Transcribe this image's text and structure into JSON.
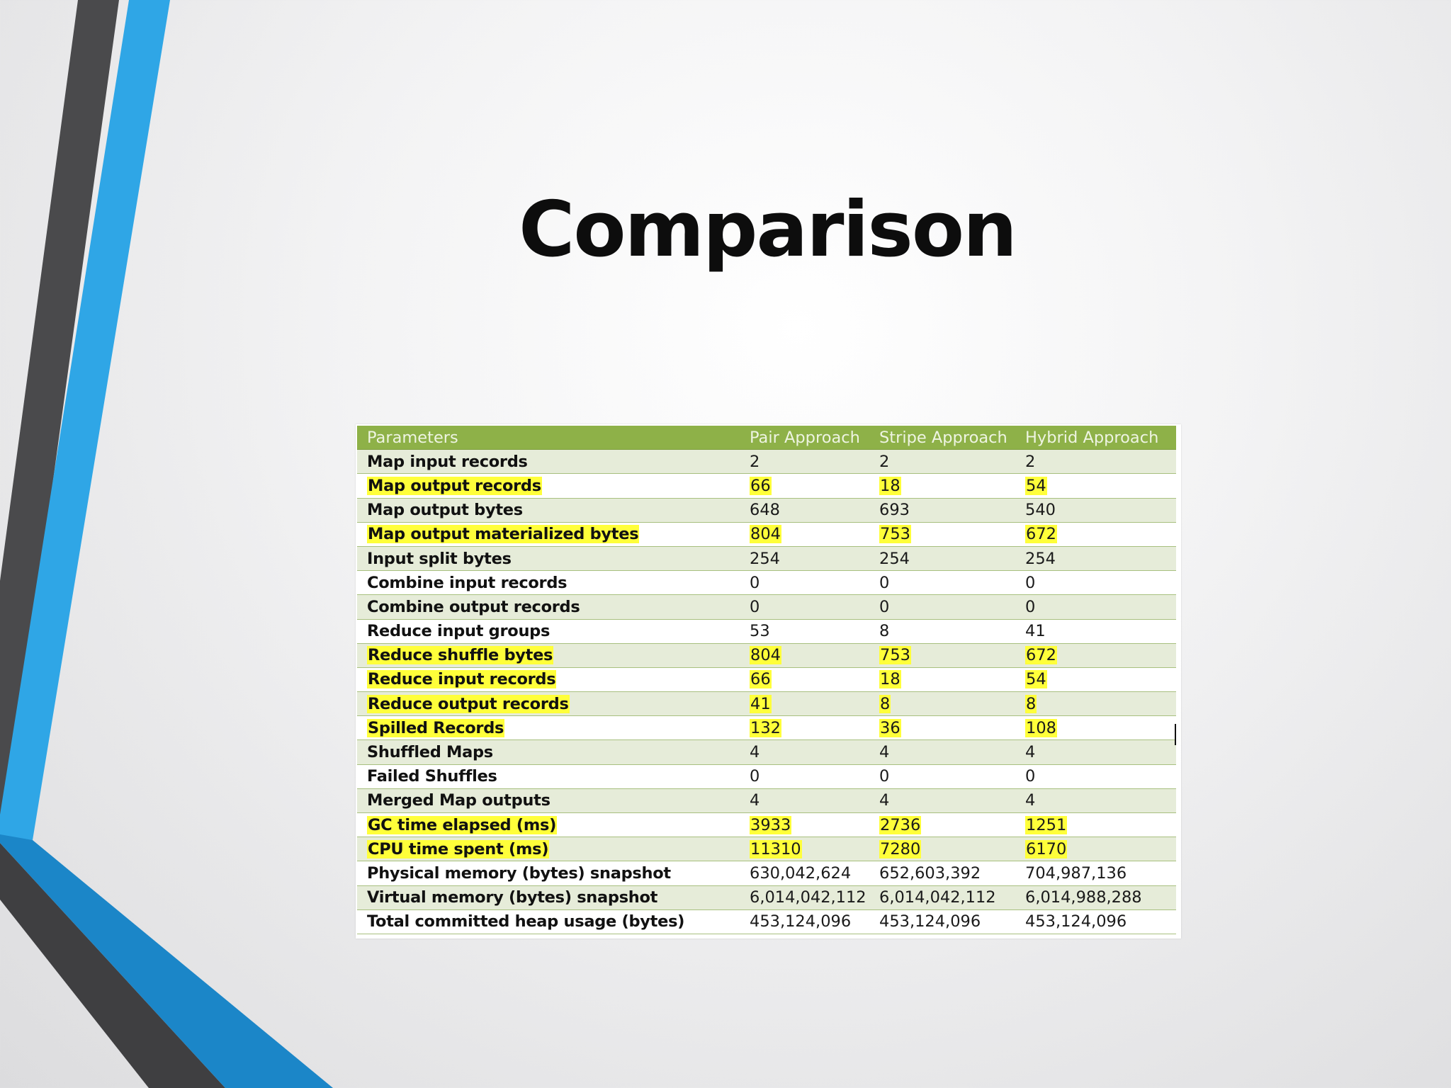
{
  "slide": {
    "title": "Comparison"
  },
  "colors": {
    "accent_blue": "#2fa6e6",
    "accent_dark": "#444446",
    "header_green": "#8eb148",
    "row_band_green": "#e6ecd9",
    "highlight_yellow": "#ffff3a"
  },
  "table": {
    "headers": [
      "Parameters",
      "Pair Approach",
      "Stripe Approach",
      "Hybrid Approach"
    ],
    "rows": [
      {
        "param": "Map input records",
        "pair": "2",
        "stripe": "2",
        "hybrid": "2",
        "highlighted": false
      },
      {
        "param": "Map output records",
        "pair": "66",
        "stripe": "18",
        "hybrid": "54",
        "highlighted": true
      },
      {
        "param": "Map output bytes",
        "pair": "648",
        "stripe": "693",
        "hybrid": "540",
        "highlighted": false
      },
      {
        "param": "Map output materialized bytes",
        "pair": "804",
        "stripe": "753",
        "hybrid": "672",
        "highlighted": true
      },
      {
        "param": "Input split bytes",
        "pair": "254",
        "stripe": "254",
        "hybrid": "254",
        "highlighted": false
      },
      {
        "param": "Combine input records",
        "pair": "0",
        "stripe": "0",
        "hybrid": "0",
        "highlighted": false
      },
      {
        "param": "Combine output records",
        "pair": "0",
        "stripe": "0",
        "hybrid": "0",
        "highlighted": false
      },
      {
        "param": "Reduce input groups",
        "pair": "53",
        "stripe": "8",
        "hybrid": "41",
        "highlighted": false
      },
      {
        "param": "Reduce shuffle bytes",
        "pair": "804",
        "stripe": "753",
        "hybrid": "672",
        "highlighted": true
      },
      {
        "param": "Reduce input records",
        "pair": "66",
        "stripe": "18",
        "hybrid": "54",
        "highlighted": true
      },
      {
        "param": "Reduce output records",
        "pair": "41",
        "stripe": "8",
        "hybrid": "8",
        "highlighted": true
      },
      {
        "param": "Spilled Records",
        "pair": "132",
        "stripe": "36",
        "hybrid": "108",
        "highlighted": true
      },
      {
        "param": "Shuffled Maps",
        "pair": "4",
        "stripe": "4",
        "hybrid": "4",
        "highlighted": false
      },
      {
        "param": "Failed Shuffles",
        "pair": "0",
        "stripe": "0",
        "hybrid": "0",
        "highlighted": false
      },
      {
        "param": "Merged Map outputs",
        "pair": "4",
        "stripe": "4",
        "hybrid": "4",
        "highlighted": false
      },
      {
        "param": "GC time elapsed (ms)",
        "pair": "3933",
        "stripe": "2736",
        "hybrid": "1251",
        "highlighted": true
      },
      {
        "param": "CPU time spent (ms)",
        "pair": "11310",
        "stripe": "7280",
        "hybrid": "6170",
        "highlighted": true
      },
      {
        "param": "Physical memory (bytes) snapshot",
        "pair": "630,042,624",
        "stripe": "652,603,392",
        "hybrid": "704,987,136",
        "highlighted": false
      },
      {
        "param": "Virtual memory (bytes) snapshot",
        "pair": "6,014,042,112",
        "stripe": "6,014,042,112",
        "hybrid": "6,014,988,288",
        "highlighted": false
      },
      {
        "param": "Total committed heap usage (bytes)",
        "pair": "453,124,096",
        "stripe": "453,124,096",
        "hybrid": "453,124,096",
        "highlighted": false
      }
    ]
  }
}
